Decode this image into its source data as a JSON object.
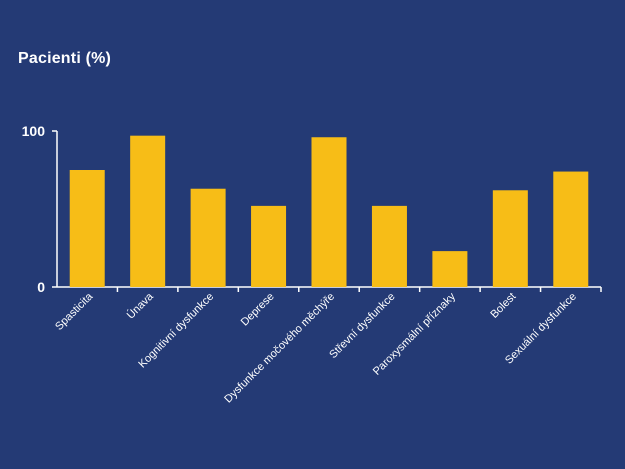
{
  "chart_data": {
    "type": "bar",
    "ylabel": "Pacienti (%)",
    "categories": [
      "Spasticita",
      "Únava",
      "Kognitivní dysfunkce",
      "Deprese",
      "Dysfunkce močového měchýře",
      "Střevní dysfunkce",
      "Paroxysmální příznaky",
      "Bolest",
      "Sexuální dysfunkce"
    ],
    "values": [
      75,
      97,
      63,
      52,
      96,
      52,
      23,
      62,
      74
    ],
    "ylim": [
      0,
      100
    ],
    "y_ticks": [
      "0",
      "100"
    ],
    "grid": false,
    "legend": "none",
    "colors": {
      "background": "#243a75",
      "bar": "#f7bd17",
      "axis": "#ffffff",
      "text": "#ffffff"
    }
  }
}
